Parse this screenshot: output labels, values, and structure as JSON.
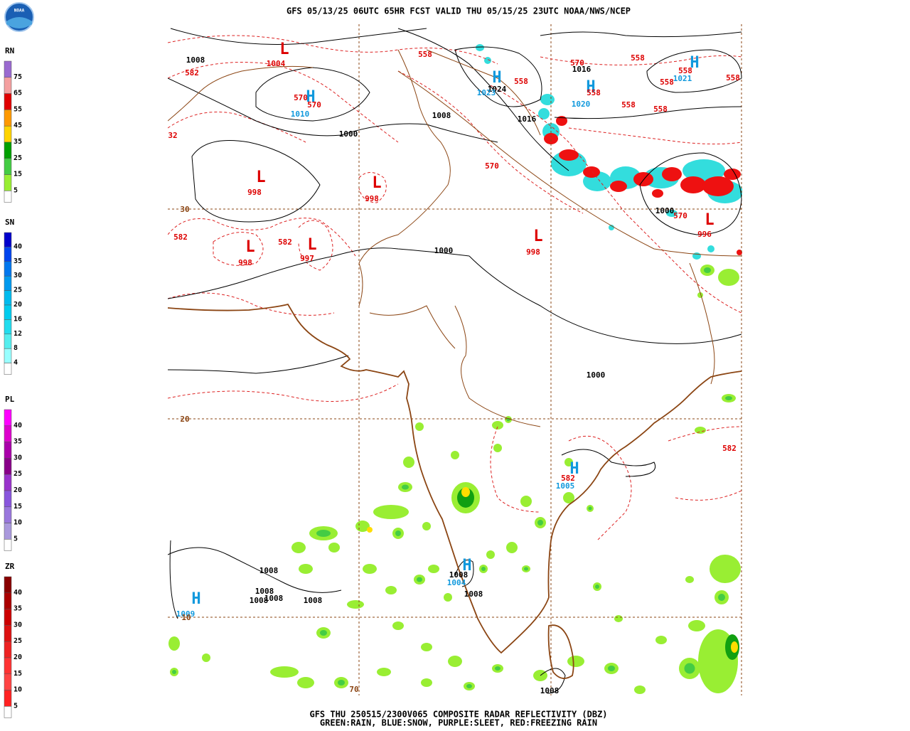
{
  "header": {
    "title": "GFS 05/13/25 06UTC 65HR FCST VALID THU 05/15/25 23UTC NOAA/NWS/NCEP",
    "logo_text": "NOAA"
  },
  "legends": [
    {
      "title": "RN",
      "entries": [
        {
          "label": "75",
          "color": "#9a6ad0"
        },
        {
          "label": "65",
          "color": "#f4a0a0"
        },
        {
          "label": "55",
          "color": "#e00000"
        },
        {
          "label": "45",
          "color": "#ff9900"
        },
        {
          "label": "35",
          "color": "#ffd400"
        },
        {
          "label": "25",
          "color": "#00a000"
        },
        {
          "label": "15",
          "color": "#44cc44"
        },
        {
          "label": "5",
          "color": "#99ee33"
        }
      ]
    },
    {
      "title": "SN",
      "entries": [
        {
          "label": "40",
          "color": "#0000cc"
        },
        {
          "label": "35",
          "color": "#0044ee"
        },
        {
          "label": "30",
          "color": "#0077ee"
        },
        {
          "label": "25",
          "color": "#0099ee"
        },
        {
          "label": "20",
          "color": "#00bbee"
        },
        {
          "label": "16",
          "color": "#00ccee"
        },
        {
          "label": "12",
          "color": "#22ddee"
        },
        {
          "label": "8",
          "color": "#55eeee"
        },
        {
          "label": "4",
          "color": "#99ffff"
        }
      ]
    },
    {
      "title": "PL",
      "entries": [
        {
          "label": "40",
          "color": "#ff00ff"
        },
        {
          "label": "35",
          "color": "#dd00cc"
        },
        {
          "label": "30",
          "color": "#aa00aa"
        },
        {
          "label": "25",
          "color": "#880088"
        },
        {
          "label": "20",
          "color": "#9933cc"
        },
        {
          "label": "15",
          "color": "#8855dd"
        },
        {
          "label": "10",
          "color": "#9977dd"
        },
        {
          "label": "5",
          "color": "#aa99dd"
        }
      ]
    },
    {
      "title": "ZR",
      "entries": [
        {
          "label": "40",
          "color": "#880000"
        },
        {
          "label": "35",
          "color": "#aa0000"
        },
        {
          "label": "30",
          "color": "#cc0000"
        },
        {
          "label": "25",
          "color": "#dd1111"
        },
        {
          "label": "20",
          "color": "#ee2222"
        },
        {
          "label": "15",
          "color": "#ff3333"
        },
        {
          "label": "10",
          "color": "#ff4444"
        },
        {
          "label": "5",
          "color": "#ff2222"
        }
      ]
    }
  ],
  "map_labels": [
    {
      "text": "1008",
      "color": "#000000"
    },
    {
      "text": "582",
      "color": "#dd0000"
    },
    {
      "text": "L",
      "color": "#dd0000"
    },
    {
      "text": "1004",
      "color": "#dd0000"
    },
    {
      "text": "570",
      "color": "#dd0000"
    },
    {
      "text": "H",
      "color": "#1199dd"
    },
    {
      "text": "570",
      "color": "#dd0000"
    },
    {
      "text": "1010",
      "color": "#1199dd"
    },
    {
      "text": "32",
      "color": "#dd0000"
    },
    {
      "text": "1000",
      "color": "#000000"
    },
    {
      "text": "L",
      "color": "#dd0000"
    },
    {
      "text": "998",
      "color": "#dd0000"
    },
    {
      "text": "L",
      "color": "#dd0000"
    },
    {
      "text": "998",
      "color": "#dd0000"
    },
    {
      "text": "30",
      "color": "#8b4513"
    },
    {
      "text": "582",
      "color": "#dd0000"
    },
    {
      "text": "582",
      "color": "#dd0000"
    },
    {
      "text": "L",
      "color": "#dd0000"
    },
    {
      "text": "998",
      "color": "#dd0000"
    },
    {
      "text": "L",
      "color": "#dd0000"
    },
    {
      "text": "997",
      "color": "#dd0000"
    },
    {
      "text": "1000",
      "color": "#000000"
    },
    {
      "text": "L",
      "color": "#dd0000"
    },
    {
      "text": "998",
      "color": "#dd0000"
    },
    {
      "text": "558",
      "color": "#dd0000"
    },
    {
      "text": "H",
      "color": "#1199dd"
    },
    {
      "text": "1024",
      "color": "#000000"
    },
    {
      "text": "1023",
      "color": "#1199dd"
    },
    {
      "text": "558",
      "color": "#dd0000"
    },
    {
      "text": "1008",
      "color": "#000000"
    },
    {
      "text": "1016",
      "color": "#000000"
    },
    {
      "text": "570",
      "color": "#dd0000"
    },
    {
      "text": "1016",
      "color": "#000000"
    },
    {
      "text": "H",
      "color": "#1199dd"
    },
    {
      "text": "558",
      "color": "#dd0000"
    },
    {
      "text": "1020",
      "color": "#1199dd"
    },
    {
      "text": "558",
      "color": "#dd0000"
    },
    {
      "text": "H",
      "color": "#1199dd"
    },
    {
      "text": "558",
      "color": "#dd0000"
    },
    {
      "text": "1021",
      "color": "#1199dd"
    },
    {
      "text": "558",
      "color": "#dd0000"
    },
    {
      "text": "558",
      "color": "#dd0000"
    },
    {
      "text": "558",
      "color": "#dd0000"
    },
    {
      "text": "558",
      "color": "#dd0000"
    },
    {
      "text": "570",
      "color": "#dd0000"
    },
    {
      "text": "1000",
      "color": "#000000"
    },
    {
      "text": "570",
      "color": "#dd0000"
    },
    {
      "text": "L",
      "color": "#dd0000"
    },
    {
      "text": "996",
      "color": "#dd0000"
    },
    {
      "text": "1000",
      "color": "#000000"
    },
    {
      "text": "20",
      "color": "#8b4513"
    },
    {
      "text": "582",
      "color": "#dd0000"
    },
    {
      "text": "582",
      "color": "#dd0000"
    },
    {
      "text": "H",
      "color": "#1199dd"
    },
    {
      "text": "1005",
      "color": "#1199dd"
    },
    {
      "text": "1008",
      "color": "#000000"
    },
    {
      "text": "1008",
      "color": "#000000"
    },
    {
      "text": "H",
      "color": "#1199dd"
    },
    {
      "text": "1004",
      "color": "#1199dd"
    },
    {
      "text": "1008",
      "color": "#000000"
    },
    {
      "text": "1008",
      "color": "#000000"
    },
    {
      "text": "1008",
      "color": "#000000"
    },
    {
      "text": "1008",
      "color": "#000000"
    },
    {
      "text": "1008",
      "color": "#000000"
    },
    {
      "text": "H",
      "color": "#1199dd"
    },
    {
      "text": "1009",
      "color": "#1199dd"
    },
    {
      "text": "10",
      "color": "#8b4513"
    },
    {
      "text": "1008",
      "color": "#000000"
    },
    {
      "text": "70",
      "color": "#8b4513"
    }
  ],
  "footer": {
    "line1": "GFS THU 250515/2300V065 COMPOSITE RADAR REFLECTIVITY (DBZ)",
    "line2": "GREEN:RAIN, BLUE:SNOW, PURPLE:SLEET, RED:FREEZING RAIN"
  }
}
